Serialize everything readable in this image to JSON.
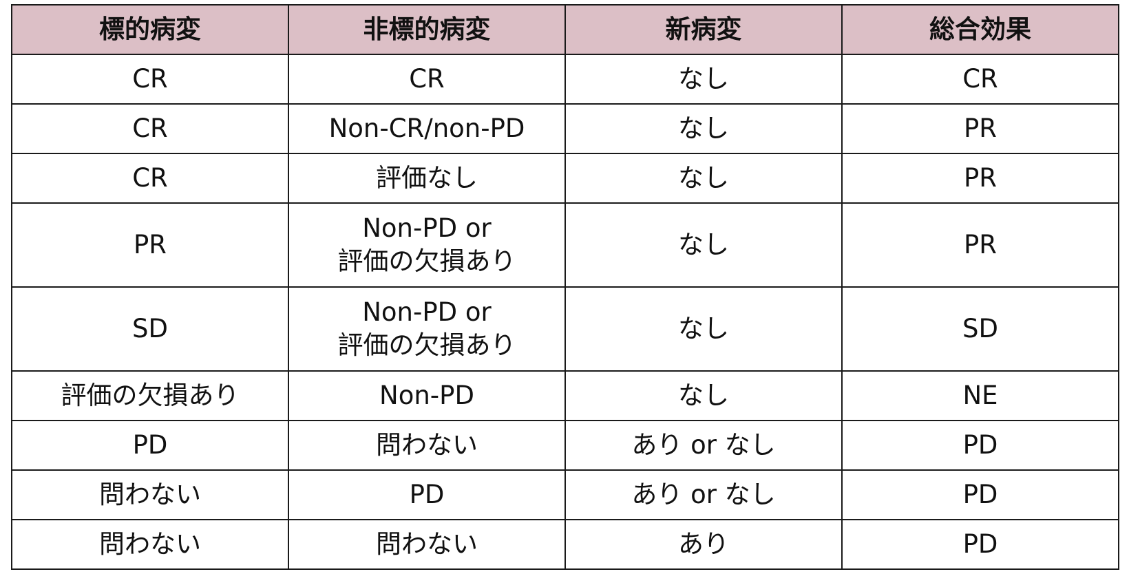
{
  "table": {
    "headers": [
      "標的病変",
      "非標的病変",
      "新病変",
      "総合効果"
    ],
    "rows": [
      {
        "cells": [
          "CR",
          "CR",
          "なし",
          "CR"
        ],
        "tall": false
      },
      {
        "cells": [
          "CR",
          "Non-CR/non-PD",
          "なし",
          "PR"
        ],
        "tall": false
      },
      {
        "cells": [
          "CR",
          "評価なし",
          "なし",
          "PR"
        ],
        "tall": false
      },
      {
        "cells": [
          "PR",
          "Non-PD or\n評価の欠損あり",
          "なし",
          "PR"
        ],
        "tall": true
      },
      {
        "cells": [
          "SD",
          "Non-PD or\n評価の欠損あり",
          "なし",
          "SD"
        ],
        "tall": true
      },
      {
        "cells": [
          "評価の欠損あり",
          "Non-PD",
          "なし",
          "NE"
        ],
        "tall": false
      },
      {
        "cells": [
          "PD",
          "問わない",
          "あり or なし",
          "PD"
        ],
        "tall": false
      },
      {
        "cells": [
          "問わない",
          "PD",
          "あり or なし",
          "PD"
        ],
        "tall": false
      },
      {
        "cells": [
          "問わない",
          "問わない",
          "あり",
          "PD"
        ],
        "tall": false
      }
    ]
  },
  "colors": {
    "header_background": "#dcbfc6",
    "border": "#1a1a1a"
  }
}
